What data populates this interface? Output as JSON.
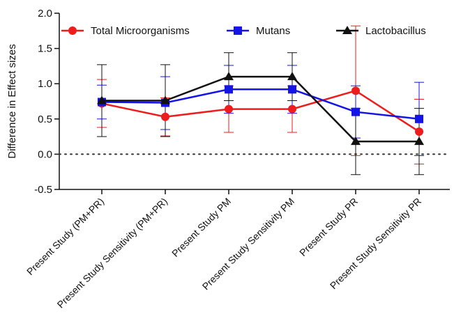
{
  "chart_data": {
    "type": "line",
    "title": "",
    "xlabel": "",
    "ylabel": "Difference in Effect sizes",
    "ylim": [
      -0.5,
      2.0
    ],
    "yticks": [
      "-0.5",
      "0.0",
      "0.5",
      "1.0",
      "1.5",
      "2.0"
    ],
    "ytick_values": [
      -0.5,
      0.0,
      0.5,
      1.0,
      1.5,
      2.0
    ],
    "reference_line": {
      "y": 0.0,
      "style": "dotted"
    },
    "grid": false,
    "legend_position": "top",
    "categories": [
      "Present Study (PM+PR)",
      "Present Study Sensitivity (PM+PR)",
      "Present Study PM",
      "Present Study Sensitivity PM",
      "Present Study PR",
      "Present Study Sensitivity PR"
    ],
    "series": [
      {
        "name": "Total Microorganisms",
        "color": "#ee1c1c",
        "marker": "circle",
        "values": [
          0.72,
          0.53,
          0.64,
          0.64,
          0.9,
          0.32
        ],
        "err_low": [
          0.38,
          0.26,
          0.31,
          0.31,
          -0.02,
          -0.14
        ],
        "err_high": [
          1.06,
          0.8,
          0.97,
          0.97,
          1.82,
          0.78
        ]
      },
      {
        "name": "Mutans",
        "color": "#1414e6",
        "marker": "square",
        "values": [
          0.74,
          0.73,
          0.92,
          0.92,
          0.6,
          0.5
        ],
        "err_low": [
          0.5,
          0.35,
          0.58,
          0.58,
          0.23,
          -0.02
        ],
        "err_high": [
          0.98,
          1.1,
          1.26,
          1.26,
          0.97,
          1.02
        ]
      },
      {
        "name": "Lactobacillus",
        "color": "#111111",
        "marker": "triangle",
        "values": [
          0.76,
          0.76,
          1.1,
          1.1,
          0.18,
          0.18
        ],
        "err_low": [
          0.25,
          0.25,
          0.76,
          0.76,
          -0.29,
          -0.29
        ],
        "err_high": [
          1.27,
          1.27,
          1.44,
          1.44,
          0.65,
          0.65
        ]
      }
    ]
  }
}
